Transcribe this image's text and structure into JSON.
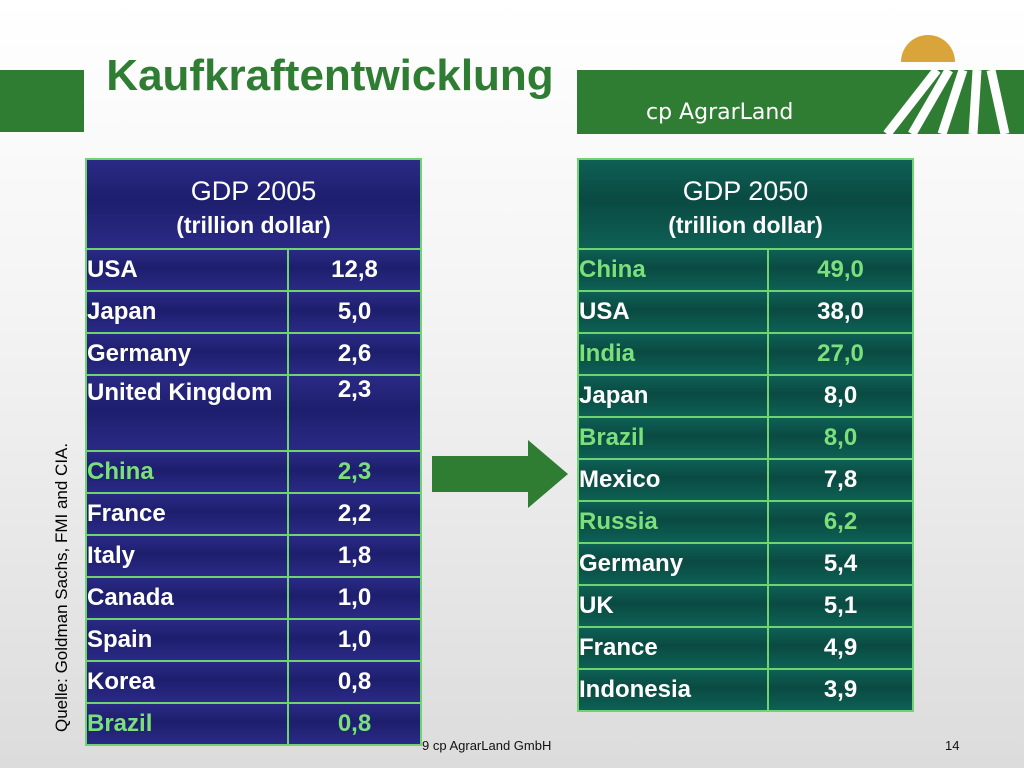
{
  "title": "Kaufkraftentwicklung",
  "logo_text": "cp AgrarLand",
  "source_note": "Quelle: Goldman Sachs, FMI and CIA.",
  "footer": "9 cp AgrarLand GmbH",
  "page_number": "14",
  "colors": {
    "brand_green": "#2e7d32",
    "highlight": "#7be07b",
    "table2005": "#1e1e6e",
    "table2050": "#0a4a42"
  },
  "table_2005": {
    "heading": "GDP 2005",
    "subheading": "(trillion dollar)",
    "rows": [
      {
        "country": "USA",
        "value": "12,8"
      },
      {
        "country": "Japan",
        "value": "5,0"
      },
      {
        "country": "Germany",
        "value": "2,6"
      },
      {
        "country": "United Kingdom",
        "value": "2,3"
      },
      {
        "country": "China",
        "value": "2,3",
        "highlight": true
      },
      {
        "country": "France",
        "value": "2,2"
      },
      {
        "country": "Italy",
        "value": "1,8"
      },
      {
        "country": "Canada",
        "value": "1,0"
      },
      {
        "country": "Spain",
        "value": "1,0"
      },
      {
        "country": "Korea",
        "value": "0,8"
      },
      {
        "country": "Brazil",
        "value": "0,8",
        "highlight": true
      }
    ]
  },
  "table_2050": {
    "heading": "GDP 2050",
    "subheading": "(trillion dollar)",
    "rows": [
      {
        "country": "China",
        "value": "49,0",
        "highlight": true
      },
      {
        "country": "USA",
        "value": "38,0"
      },
      {
        "country": "India",
        "value": "27,0",
        "highlight": true
      },
      {
        "country": "Japan",
        "value": "8,0"
      },
      {
        "country": "Brazil",
        "value": "8,0",
        "highlight": true
      },
      {
        "country": "Mexico",
        "value": "7,8"
      },
      {
        "country": "Russia",
        "value": "6,2",
        "highlight": true
      },
      {
        "country": "Germany",
        "value": "5,4"
      },
      {
        "country": "UK",
        "value": "5,1"
      },
      {
        "country": "France",
        "value": "4,9"
      },
      {
        "country": "Indonesia",
        "value": "3,9"
      }
    ]
  }
}
